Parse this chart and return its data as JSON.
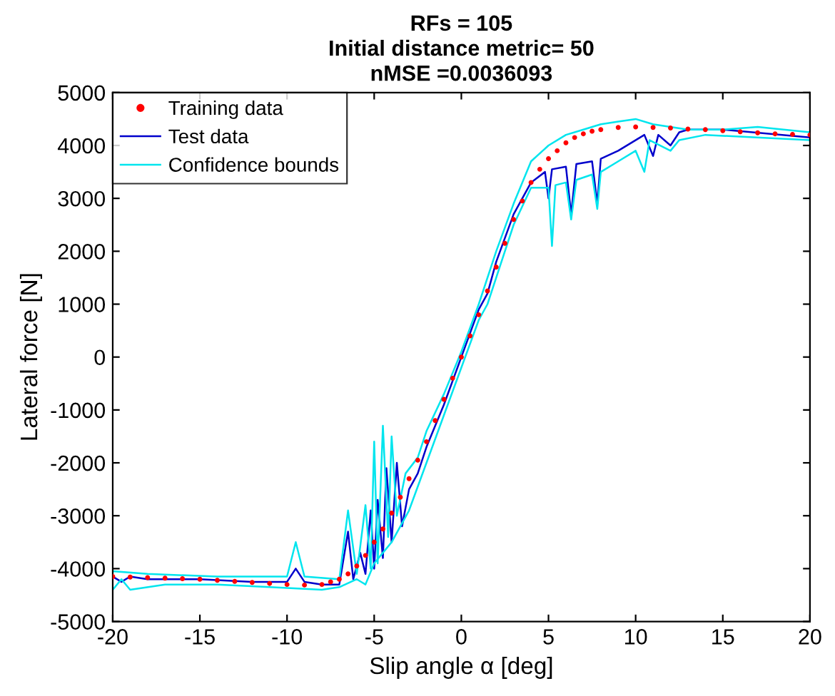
{
  "chart_data": {
    "type": "line",
    "title": "RFs = 105\nInitial distance metric= 50\nnMSE =0.0036093",
    "xlabel": "Slip angle α [deg]",
    "ylabel": "Lateral force [N]",
    "xlim": [
      -20,
      20
    ],
    "ylim": [
      -5000,
      5000
    ],
    "xticks": [
      -20,
      -15,
      -10,
      -5,
      0,
      5,
      10,
      15,
      20
    ],
    "yticks": [
      -5000,
      -4000,
      -3000,
      -2000,
      -1000,
      0,
      1000,
      2000,
      3000,
      4000,
      5000
    ],
    "grid": false,
    "legend": "top left",
    "series": [
      {
        "name": "Training data",
        "type": "scatter",
        "marker": "circle",
        "color": "#ff0000",
        "x": [
          -20,
          -19,
          -18,
          -17,
          -16,
          -15,
          -14,
          -13,
          -12,
          -11,
          -10,
          -9,
          -8,
          -7.5,
          -7,
          -6.5,
          -6,
          -5.5,
          -5,
          -4.5,
          -4,
          -3.5,
          -3,
          -2.5,
          -2,
          -1.5,
          -1,
          -0.5,
          0,
          0.5,
          1,
          1.5,
          2,
          2.5,
          3,
          3.5,
          4,
          4.5,
          5,
          5.5,
          6,
          6.5,
          7,
          7.5,
          8,
          9,
          10,
          11,
          12,
          13,
          14,
          15,
          16,
          17,
          18,
          19,
          20
        ],
        "values": [
          -4150,
          -4160,
          -4170,
          -4180,
          -4190,
          -4200,
          -4220,
          -4240,
          -4260,
          -4280,
          -4300,
          -4310,
          -4300,
          -4250,
          -4200,
          -4100,
          -3950,
          -3750,
          -3500,
          -3250,
          -2950,
          -2650,
          -2300,
          -1950,
          -1600,
          -1200,
          -800,
          -400,
          0,
          400,
          800,
          1250,
          1700,
          2150,
          2600,
          2950,
          3300,
          3550,
          3750,
          3900,
          4050,
          4150,
          4220,
          4270,
          4300,
          4340,
          4350,
          4340,
          4330,
          4310,
          4300,
          4280,
          4260,
          4240,
          4220,
          4210,
          4200
        ]
      },
      {
        "name": "Test data",
        "marker": "none",
        "line_style": "solid",
        "color": "#0000cc",
        "x": [
          -20,
          -19.5,
          -19,
          -18,
          -15,
          -12,
          -10,
          -9.5,
          -9,
          -8,
          -7,
          -6.5,
          -6.2,
          -5.8,
          -5.5,
          -5.2,
          -5,
          -4.8,
          -4.5,
          -4.3,
          -4,
          -3.7,
          -3.4,
          -3,
          -2.5,
          -2,
          -1,
          0,
          1,
          1.5,
          2,
          3,
          4,
          4.8,
          5,
          5.2,
          6,
          6.3,
          6.6,
          7.5,
          7.8,
          8,
          9,
          10.5,
          11,
          11.3,
          12,
          12.5,
          13,
          15,
          20
        ],
        "values": [
          -4150,
          -4250,
          -4150,
          -4200,
          -4200,
          -4250,
          -4250,
          -4000,
          -4250,
          -4300,
          -4300,
          -3300,
          -4200,
          -3700,
          -4100,
          -2900,
          -4000,
          -2700,
          -3800,
          -2100,
          -3500,
          -2000,
          -3200,
          -2500,
          -2200,
          -1700,
          -900,
          0,
          900,
          1200,
          1800,
          2700,
          3300,
          3500,
          3000,
          3550,
          3600,
          2700,
          3650,
          3700,
          2900,
          3750,
          3900,
          4200,
          3800,
          4200,
          4000,
          4250,
          4300,
          4300,
          4150
        ]
      },
      {
        "name": "Confidence bounds",
        "marker": "none",
        "line_style": "solid",
        "color": "#00e5ee",
        "x": [
          -20,
          -18,
          -14,
          -10,
          -9.5,
          -9,
          -7,
          -6.5,
          -6,
          -5.5,
          -5.2,
          -5,
          -4.8,
          -4.5,
          -4.2,
          -4,
          -3.7,
          -3.2,
          -2.5,
          -2,
          -1,
          0,
          1,
          2,
          3,
          4,
          5,
          6,
          7,
          8,
          9,
          10,
          11,
          12,
          13,
          15,
          17,
          20
        ],
        "values": [
          -4050,
          -4100,
          -4150,
          -4150,
          -3500,
          -4150,
          -4200,
          -2900,
          -4100,
          -2800,
          -4000,
          -1600,
          -3900,
          -1300,
          -3400,
          -1500,
          -3000,
          -2200,
          -1900,
          -1400,
          -700,
          100,
          1000,
          2000,
          2900,
          3700,
          4000,
          4200,
          4300,
          4400,
          4450,
          4500,
          4400,
          4350,
          4300,
          4300,
          4350,
          4250
        ]
      },
      {
        "marker": "none",
        "line_style": "solid",
        "color": "#00e5ee",
        "x": [
          -20,
          -19.5,
          -19,
          -17,
          -14,
          -11,
          -8,
          -7,
          -6,
          -5.5,
          -5,
          -4.5,
          -4,
          -3,
          -2,
          -1,
          0,
          1,
          1.5,
          2,
          3,
          4,
          5,
          5.2,
          5.4,
          6,
          6.3,
          6.6,
          7.5,
          7.8,
          8,
          9,
          10,
          10.5,
          10.8,
          12,
          12.5,
          14,
          20
        ],
        "values": [
          -4400,
          -4200,
          -4400,
          -4300,
          -4300,
          -4350,
          -4400,
          -4350,
          -4200,
          -4300,
          -3900,
          -3700,
          -3500,
          -2900,
          -2000,
          -1100,
          -200,
          700,
          1000,
          1500,
          2500,
          3200,
          3200,
          2100,
          3250,
          3300,
          2600,
          3350,
          3450,
          2800,
          3500,
          3700,
          3900,
          3500,
          4100,
          3900,
          4100,
          4200,
          4100
        ]
      }
    ]
  }
}
